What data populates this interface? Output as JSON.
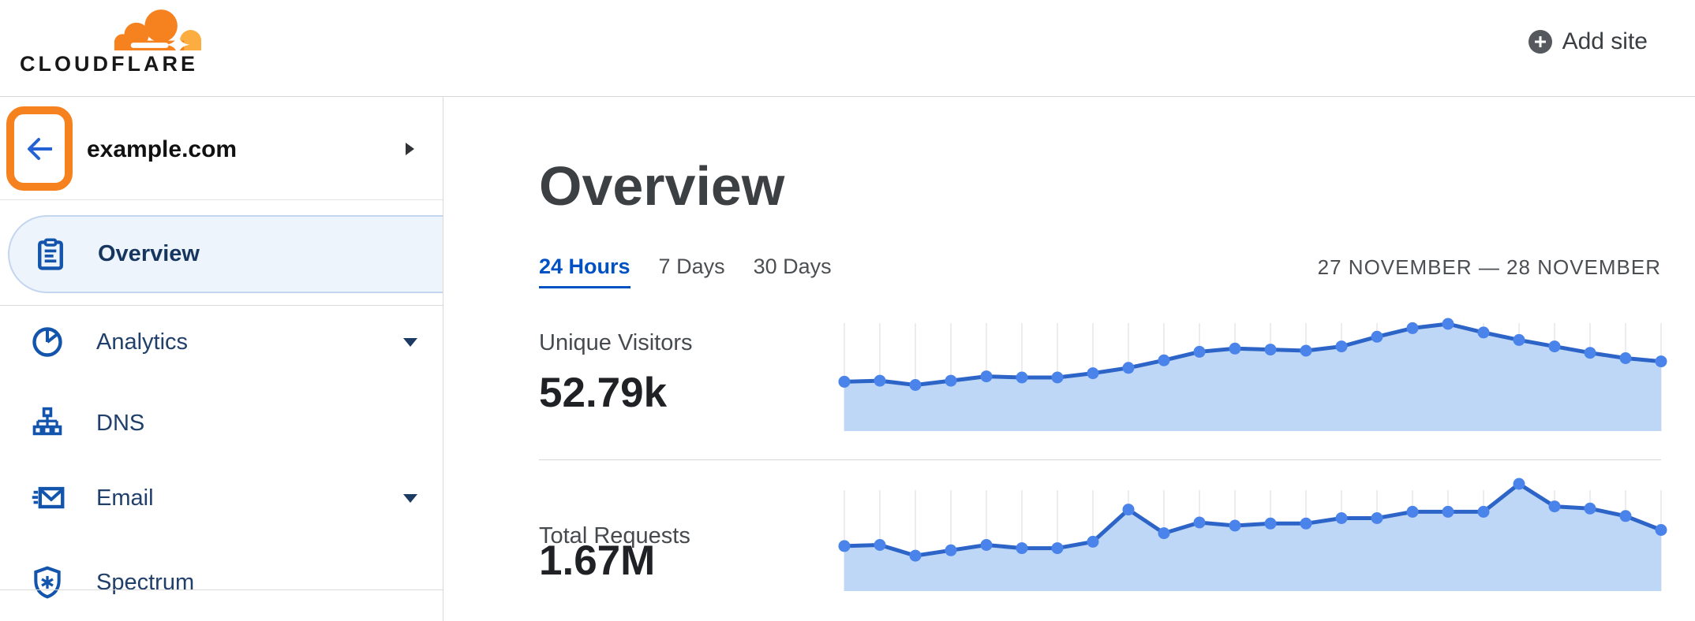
{
  "header": {
    "logo_text": "CLOUDFLARE",
    "add_site_label": "Add site"
  },
  "sidebar": {
    "site_name": "example.com",
    "back_icon": "arrow-left-icon",
    "expand_icon": "chevron-right-icon",
    "items": [
      {
        "label": "Overview",
        "icon": "clipboard-icon",
        "active": true
      },
      {
        "label": "Analytics",
        "icon": "pie-chart-icon",
        "expandable": true
      },
      {
        "label": "DNS",
        "icon": "dns-tree-icon",
        "expandable": false
      },
      {
        "label": "Email",
        "icon": "email-icon",
        "expandable": true
      },
      {
        "label": "Spectrum",
        "icon": "shield-spectrum-icon",
        "expandable": false
      }
    ]
  },
  "main": {
    "title": "Overview",
    "tabs": [
      {
        "label": "24 Hours",
        "active": true
      },
      {
        "label": "7 Days",
        "active": false
      },
      {
        "label": "30 Days",
        "active": false
      }
    ],
    "date_range": "27 NOVEMBER — 28 NOVEMBER",
    "metrics": [
      {
        "label": "Unique Visitors",
        "value": "52.79k"
      },
      {
        "label": "Total Requests",
        "value": "1.67M"
      }
    ]
  },
  "colors": {
    "brand_orange": "#f6821f",
    "brand_orange_light": "#fbad41",
    "link_blue": "#0051c3",
    "nav_icon_blue": "#1355ac",
    "nav_text_navy": "#20406b",
    "back_arrow_blue": "#2563d4",
    "highlight_ring_orange": "#f6821f",
    "chart_line": "#2d64c8",
    "chart_point": "#4a83e9",
    "chart_fill": "#bfd7f7",
    "chart_grid": "#ededf1",
    "divider": "#d9d9d9",
    "text_dark": "#1f2124",
    "text_gray": "#4b4e52"
  },
  "chart_data": [
    {
      "type": "area",
      "title": "Unique Visitors",
      "total_shown": "52.79k",
      "time_window": "24 Hours",
      "num_points": 24,
      "x_tick_labels": [],
      "y_tick_labels": [],
      "grid": "vertical-only",
      "legend": "none",
      "values_normalized": [
        0.46,
        0.47,
        0.43,
        0.47,
        0.51,
        0.5,
        0.5,
        0.54,
        0.59,
        0.66,
        0.74,
        0.77,
        0.76,
        0.75,
        0.79,
        0.88,
        0.96,
        1.0,
        0.92,
        0.85,
        0.79,
        0.73,
        0.68,
        0.65
      ]
    },
    {
      "type": "area",
      "title": "Total Requests",
      "total_shown": "1.67M",
      "time_window": "24 Hours",
      "num_points": 24,
      "x_tick_labels": [],
      "y_tick_labels": [],
      "grid": "vertical-only",
      "legend": "none",
      "values_normalized": [
        0.42,
        0.43,
        0.33,
        0.38,
        0.43,
        0.4,
        0.4,
        0.46,
        0.76,
        0.54,
        0.64,
        0.61,
        0.63,
        0.63,
        0.68,
        0.68,
        0.74,
        0.74,
        0.74,
        1.0,
        0.79,
        0.77,
        0.7,
        0.57
      ]
    }
  ]
}
